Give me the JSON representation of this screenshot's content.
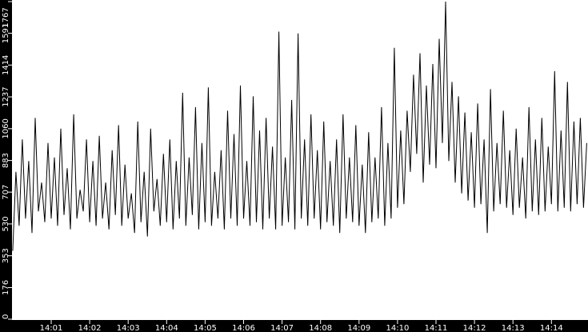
{
  "chart_data": {
    "type": "line",
    "title": "",
    "xlabel": "",
    "ylabel": "",
    "ylim": [
      0,
      1767
    ],
    "yticks": [
      0,
      176,
      353,
      530,
      707,
      883,
      1060,
      1237,
      1414,
      1591,
      1767
    ],
    "xticks": [
      "14:01",
      "14:02",
      "14:03",
      "14:04",
      "14:05",
      "14:06",
      "14:07",
      "14:08",
      "14:09",
      "14:10",
      "14:11",
      "14:12",
      "14:13",
      "14:14"
    ],
    "x_start": "14:00:00",
    "x_interval_seconds": 5,
    "grid": false,
    "colors": {
      "background": "#ffffff",
      "frame": "#000000",
      "line": "#000000",
      "text": "#ffffff"
    },
    "values": [
      380,
      820,
      520,
      1000,
      560,
      880,
      480,
      1120,
      600,
      760,
      540,
      980,
      560,
      900,
      520,
      1060,
      580,
      840,
      500,
      1140,
      560,
      720,
      600,
      1000,
      540,
      880,
      520,
      1020,
      560,
      760,
      500,
      940,
      580,
      1080,
      520,
      860,
      560,
      700,
      480,
      1100,
      540,
      820,
      460,
      1060,
      600,
      780,
      520,
      920,
      540,
      1000,
      500,
      880,
      560,
      1260,
      520,
      900,
      580,
      1180,
      500,
      980,
      540,
      1290,
      520,
      820,
      560,
      940,
      500,
      1160,
      560,
      1030,
      520,
      1300,
      560,
      880,
      520,
      1240,
      540,
      1050,
      500,
      1120,
      560,
      960,
      500,
      1600,
      520,
      900,
      540,
      1220,
      500,
      1590,
      560,
      1000,
      520,
      1140,
      560,
      940,
      500,
      1100,
      540,
      880,
      520,
      1000,
      480,
      1140,
      560,
      900,
      540,
      1080,
      520,
      860,
      480,
      1040,
      540,
      900,
      560,
      1180,
      520,
      980,
      560,
      1510,
      620,
      1050,
      640,
      1160,
      820,
      1360,
      920,
      1480,
      760,
      1300,
      860,
      1420,
      840,
      1560,
      980,
      1767,
      880,
      1320,
      760,
      1240,
      700,
      1150,
      660,
      1040,
      620,
      1200,
      640,
      1000,
      480,
      1280,
      600,
      980,
      640,
      1160,
      620,
      940,
      580,
      1060,
      620,
      900,
      560,
      1180,
      600,
      1000,
      580,
      1120,
      600,
      960,
      640,
      1380,
      600,
      1050,
      620,
      1320,
      600,
      1100,
      640,
      1120,
      620,
      980
    ]
  }
}
